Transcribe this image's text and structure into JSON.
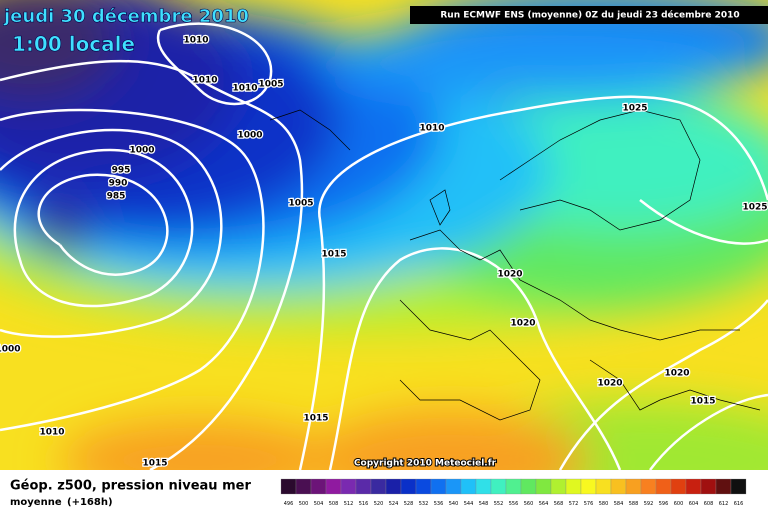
{
  "header": {
    "date": "jeudi 30 décembre 2010",
    "time": "1:00 locale",
    "run": "Run ECMWF ENS (moyenne) 0Z du jeudi 23 décembre 2010"
  },
  "isobars": [
    1010,
    1010,
    1010,
    1005,
    1000,
    1000,
    995,
    990,
    985,
    1005,
    1015,
    1010,
    1025,
    1025,
    1020,
    1020,
    1020,
    1020,
    1015,
    1015,
    1010,
    1015,
    1000
  ],
  "copyright": "Copyright 2010 Meteociel.fr",
  "legend": {
    "title": "Géop. z500, pression niveau mer",
    "subtitle": "moyenne",
    "lead": "(+168h)"
  },
  "scale": {
    "values": [
      496,
      500,
      504,
      508,
      512,
      516,
      520,
      524,
      528,
      532,
      536,
      540,
      544,
      548,
      552,
      556,
      560,
      564,
      568,
      572,
      576,
      580,
      584,
      588,
      592,
      596,
      600,
      604,
      608,
      612,
      616
    ],
    "colors": [
      "#2b0a2e",
      "#4a0f52",
      "#6c1478",
      "#901aa0",
      "#7a2ab0",
      "#5a2aa8",
      "#3a2aa0",
      "#1a20a8",
      "#0a30c8",
      "#0a4ae0",
      "#1070f0",
      "#1a96f8",
      "#20c0f8",
      "#30e0e8",
      "#40f0c0",
      "#50f090",
      "#60e860",
      "#80e840",
      "#b0f030",
      "#e0f820",
      "#f8f820",
      "#f8e020",
      "#f8c020",
      "#f8a020",
      "#f88020",
      "#f06018",
      "#e04010",
      "#c82010",
      "#a01010",
      "#601010",
      "#101010"
    ]
  }
}
